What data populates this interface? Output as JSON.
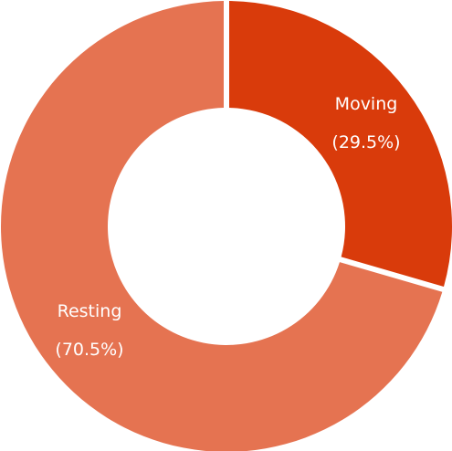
{
  "chart_data": {
    "type": "pie",
    "variant": "donut",
    "slices": [
      {
        "label": "Moving",
        "percent_label": "(29.5%)",
        "value": 29.5,
        "color": "#d93b0b"
      },
      {
        "label": "Resting",
        "percent_label": "(70.5%)",
        "value": 70.5,
        "color": "#e57351"
      }
    ],
    "legend": "none",
    "background": "#ffffff"
  }
}
